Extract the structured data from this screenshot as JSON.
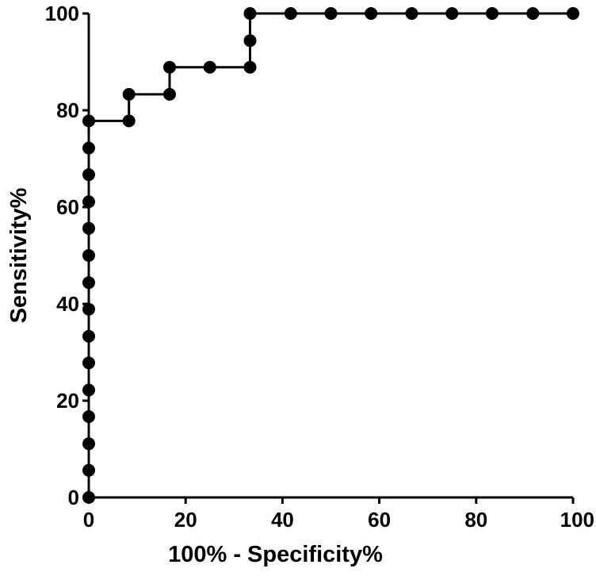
{
  "chart_data": {
    "type": "line",
    "title": "",
    "xlabel": "100% - Specificity%",
    "ylabel": "Sensitivity%",
    "xlim": [
      0,
      100
    ],
    "ylim": [
      0,
      100
    ],
    "x_ticks": [
      "0",
      "20",
      "40",
      "60",
      "80",
      "100"
    ],
    "y_ticks": [
      "0",
      "20",
      "40",
      "60",
      "80",
      "100"
    ],
    "grid": false,
    "legend": "none",
    "line_style": "step",
    "color": "#000000",
    "series": [
      {
        "points": [
          [
            0,
            0
          ],
          [
            0,
            5.6
          ],
          [
            0,
            11.1
          ],
          [
            0,
            16.7
          ],
          [
            0,
            22.2
          ],
          [
            0,
            27.8
          ],
          [
            0,
            33.3
          ],
          [
            0,
            38.9
          ],
          [
            0,
            44.4
          ],
          [
            0,
            50.0
          ],
          [
            0,
            55.6
          ],
          [
            0,
            61.1
          ],
          [
            0,
            66.7
          ],
          [
            0,
            72.2
          ],
          [
            0,
            77.8
          ],
          [
            8.3,
            77.8
          ],
          [
            8.3,
            83.3
          ],
          [
            16.7,
            83.3
          ],
          [
            16.7,
            88.9
          ],
          [
            25.0,
            88.9
          ],
          [
            33.3,
            88.9
          ],
          [
            33.3,
            94.4
          ],
          [
            33.3,
            100
          ],
          [
            41.7,
            100
          ],
          [
            50.0,
            100
          ],
          [
            58.3,
            100
          ],
          [
            66.7,
            100
          ],
          [
            75.0,
            100
          ],
          [
            83.3,
            100
          ],
          [
            91.7,
            100
          ],
          [
            100,
            100
          ]
        ]
      }
    ]
  }
}
